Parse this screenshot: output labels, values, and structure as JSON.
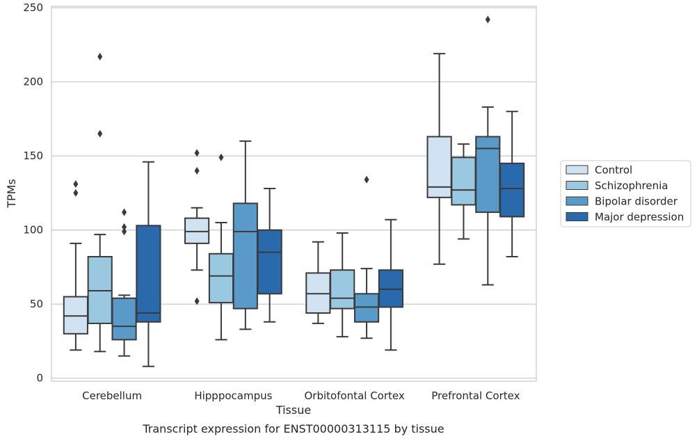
{
  "chart_data": {
    "type": "boxplot",
    "caption": "Transcript expression for ENST00000313115 by tissue",
    "xlabel": "Tissue",
    "ylabel": "TPMs",
    "ylim": [
      -2,
      251
    ],
    "yticks": [
      0,
      50,
      100,
      150,
      200,
      250
    ],
    "grid": "horizontal",
    "legend_position": "right",
    "categories": [
      "Cerebellum",
      "Hipppocampus",
      "Orbitofontal Cortex",
      "Prefrontal Cortex"
    ],
    "series": [
      {
        "name": "Control",
        "color": "#d1e2f2",
        "boxes": [
          {
            "whislo": 19,
            "q1": 30,
            "med": 42,
            "q3": 55,
            "whishi": 91,
            "fliers": [
              125,
              131
            ]
          },
          {
            "whislo": 73,
            "q1": 91,
            "med": 99,
            "q3": 108,
            "whishi": 115,
            "fliers": [
              140,
              152,
              52
            ]
          },
          {
            "whislo": 37,
            "q1": 44,
            "med": 57,
            "q3": 71,
            "whishi": 92,
            "fliers": []
          },
          {
            "whislo": 77,
            "q1": 122,
            "med": 129,
            "q3": 163,
            "whishi": 219,
            "fliers": []
          }
        ]
      },
      {
        "name": "Schizophrenia",
        "color": "#9ac8e0",
        "boxes": [
          {
            "whislo": 18,
            "q1": 37,
            "med": 59,
            "q3": 82,
            "whishi": 97,
            "fliers": [
              165,
              217
            ]
          },
          {
            "whislo": 26,
            "q1": 51,
            "med": 69,
            "q3": 84,
            "whishi": 105,
            "fliers": [
              149
            ]
          },
          {
            "whislo": 28,
            "q1": 47,
            "med": 54,
            "q3": 73,
            "whishi": 98,
            "fliers": []
          },
          {
            "whislo": 94,
            "q1": 117,
            "med": 127,
            "q3": 149,
            "whishi": 158,
            "fliers": []
          }
        ]
      },
      {
        "name": "Bipolar disorder",
        "color": "#5a9ac8",
        "boxes": [
          {
            "whislo": 15,
            "q1": 26,
            "med": 35,
            "q3": 54,
            "whishi": 56,
            "fliers": [
              99,
              102,
              112
            ]
          },
          {
            "whislo": 33,
            "q1": 47,
            "med": 99,
            "q3": 118,
            "whishi": 160,
            "fliers": []
          },
          {
            "whislo": 27,
            "q1": 38,
            "med": 48,
            "q3": 57,
            "whishi": 74,
            "fliers": [
              134
            ]
          },
          {
            "whislo": 63,
            "q1": 112,
            "med": 155,
            "q3": 163,
            "whishi": 183,
            "fliers": [
              242
            ]
          }
        ]
      },
      {
        "name": "Major depression",
        "color": "#2a69ab",
        "boxes": [
          {
            "whislo": 8,
            "q1": 38,
            "med": 44,
            "q3": 103,
            "whishi": 146,
            "fliers": []
          },
          {
            "whislo": 38,
            "q1": 57,
            "med": 85,
            "q3": 100,
            "whishi": 128,
            "fliers": []
          },
          {
            "whislo": 19,
            "q1": 48,
            "med": 60,
            "q3": 73,
            "whishi": 107,
            "fliers": []
          },
          {
            "whislo": 82,
            "q1": 109,
            "med": 128,
            "q3": 145,
            "whishi": 180,
            "fliers": []
          }
        ]
      }
    ]
  }
}
